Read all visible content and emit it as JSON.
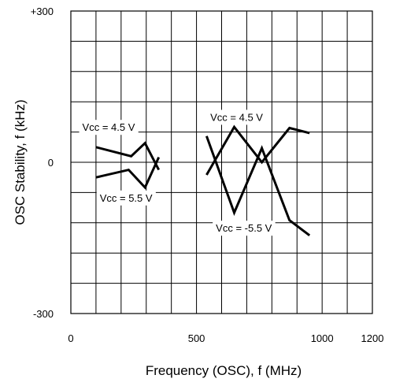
{
  "chart_data": {
    "type": "line",
    "title": "",
    "xlabel": "Frequency (OSC), f (MHz)",
    "ylabel": "OSC Stability, f (kHz)",
    "xlim": [
      0,
      1200
    ],
    "ylim": [
      -300,
      300
    ],
    "x_ticks": [
      0,
      500,
      1000,
      1200
    ],
    "x_tick_labels": [
      "0",
      "500",
      "1000",
      "1200"
    ],
    "y_ticks": [
      300,
      0,
      -300
    ],
    "y_tick_labels": [
      "+300",
      "0",
      "-300"
    ],
    "x_grid_step": 100,
    "y_grid_step": 60,
    "grid": true,
    "series": [
      {
        "name": "Vcc = 4.5 V",
        "x": [
          100,
          240,
          295,
          350
        ],
        "y": [
          30,
          12,
          38,
          -15
        ]
      },
      {
        "name": "Vcc = 5.5 V",
        "x": [
          100,
          230,
          295,
          350
        ],
        "y": [
          -30,
          -15,
          -50,
          10
        ]
      },
      {
        "name": "Vcc = 4.5 V",
        "x": [
          540,
          650,
          760,
          870,
          950
        ],
        "y": [
          -25,
          70,
          0,
          68,
          58
        ]
      },
      {
        "name": "Vcc = -5.5 V",
        "x": [
          540,
          650,
          760,
          870,
          950
        ],
        "y": [
          52,
          -100,
          28,
          -115,
          -145
        ]
      }
    ],
    "annotations": [
      {
        "text": "Vcc = 4.5 V",
        "x": 255,
        "y": 70,
        "anchor": "end"
      },
      {
        "text": "Vcc = 5.5 V",
        "x": 115,
        "y": -70,
        "anchor": "start"
      },
      {
        "text": "Vcc = 4.5 V",
        "x": 555,
        "y": 90,
        "anchor": "start"
      },
      {
        "text": "Vcc = -5.5 V",
        "x": 800,
        "y": -130,
        "anchor": "end"
      }
    ]
  }
}
